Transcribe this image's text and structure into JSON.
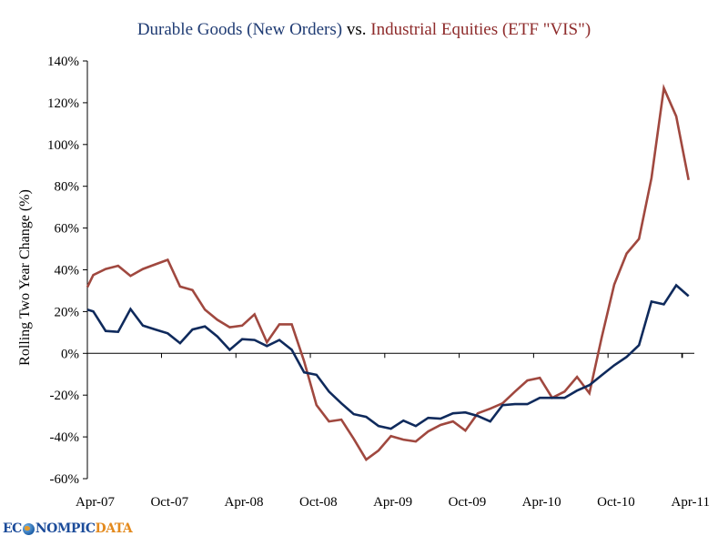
{
  "chart_data": {
    "type": "line",
    "title": {
      "part1": "Durable Goods (New Orders)",
      "part2": " vs. ",
      "part3": "Industrial Equities (ETF \"VIS\")"
    },
    "xlabel": "",
    "ylabel": "Rolling Two Year Change (%)",
    "ylim": [
      -60,
      140
    ],
    "yticks": [
      140,
      120,
      100,
      80,
      60,
      40,
      20,
      0,
      -20,
      -40,
      -60
    ],
    "ytick_labels": [
      "140%",
      "120%",
      "100%",
      "80%",
      "60%",
      "40%",
      "20%",
      "0%",
      "-20%",
      "-40%",
      "-60%"
    ],
    "x_unit": "months since Apr-07",
    "xlim": [
      -0.5,
      48.5
    ],
    "xticks": [
      0,
      6,
      12,
      18,
      24,
      30,
      36,
      42,
      48
    ],
    "xtick_labels": [
      "Apr-07",
      "Oct-07",
      "Apr-08",
      "Oct-08",
      "Apr-09",
      "Oct-09",
      "Apr-10",
      "Oct-10",
      "Apr-11"
    ],
    "grid": false,
    "legend": "none (series named by title colors)",
    "x": [
      -0.5,
      0,
      1,
      2,
      3,
      4,
      5,
      6,
      7,
      8,
      9,
      10,
      11,
      12,
      13,
      14,
      15,
      16,
      17,
      18,
      19,
      20,
      21,
      22,
      23,
      24,
      25,
      26,
      27,
      28,
      29,
      30,
      31,
      32,
      33,
      34,
      35,
      36,
      37,
      38,
      39,
      40,
      41,
      42,
      43,
      44,
      45,
      46,
      47,
      48
    ],
    "series": [
      {
        "name": "Durable Goods (New Orders)",
        "color": "#0f2a5c",
        "values": [
          20.9,
          20.1,
          10.7,
          10.3,
          21.2,
          13.3,
          11.4,
          9.6,
          4.9,
          11.4,
          12.9,
          8.1,
          1.7,
          6.8,
          6.4,
          3.5,
          6.4,
          1.7,
          -9.1,
          -10.3,
          -18.3,
          -23.9,
          -29.1,
          -30.4,
          -34.8,
          -36.1,
          -32.2,
          -34.8,
          -30.9,
          -31.3,
          -28.7,
          -28.3,
          -30.0,
          -32.6,
          -24.8,
          -24.3,
          -24.3,
          -21.3,
          -21.3,
          -21.3,
          -17.8,
          -15.2,
          -10.4,
          -5.7,
          -1.7,
          3.9,
          24.8,
          23.5,
          32.6,
          27.4
        ]
      },
      {
        "name": "Industrial Equities (ETF \"VIS\")",
        "color": "#a0483f",
        "values": [
          31.7,
          37.5,
          40.4,
          41.9,
          37.1,
          40.4,
          42.6,
          44.8,
          32.0,
          30.3,
          20.9,
          16.1,
          12.5,
          13.3,
          18.7,
          5.3,
          13.9,
          13.9,
          -3.8,
          -24.8,
          -32.6,
          -31.7,
          -40.9,
          -50.9,
          -46.5,
          -39.6,
          -41.3,
          -42.2,
          -37.4,
          -34.3,
          -32.6,
          -37.0,
          -28.7,
          -26.5,
          -23.9,
          -18.3,
          -13.0,
          -11.7,
          -21.3,
          -18.3,
          -11.3,
          -19.1,
          7.8,
          33.0,
          47.8,
          54.8,
          83.9,
          127.0,
          113.5,
          83.0
        ]
      }
    ],
    "colors": {
      "title_blue": "#1f3b73",
      "title_red": "#8e2b2b",
      "title_vs": "#000000",
      "axis": "#000000"
    }
  },
  "logo": {
    "part1": "EC",
    "part2": "NOMPIC",
    "part3": "DATA",
    "color_main": "#1c4c9a",
    "color_accent": "#e38a1e"
  }
}
